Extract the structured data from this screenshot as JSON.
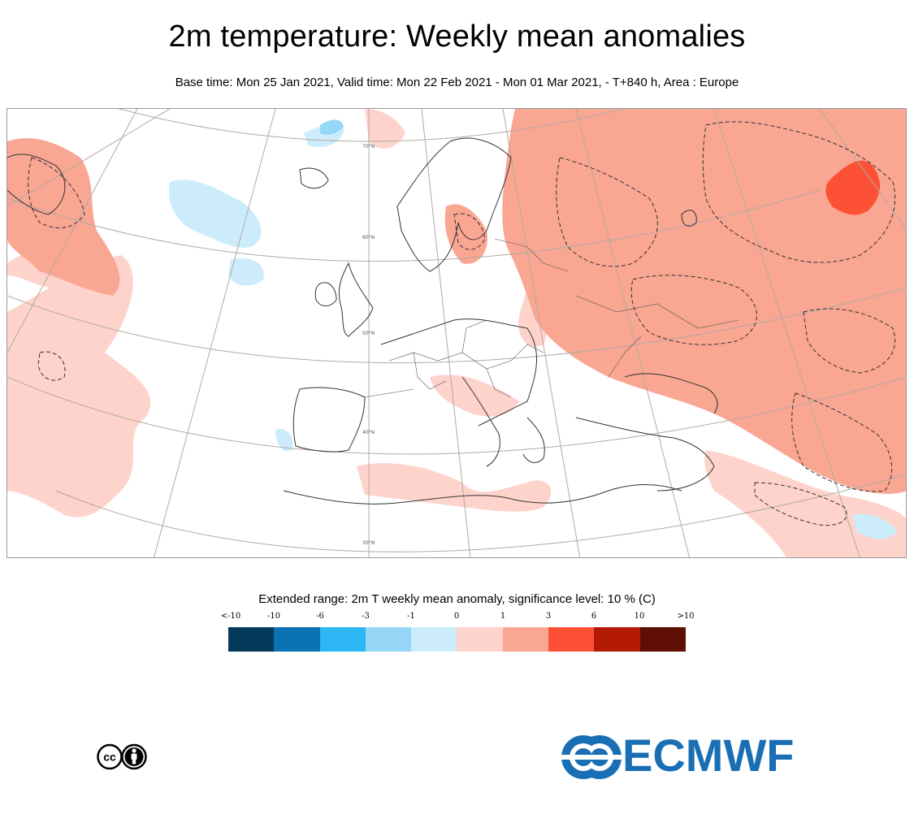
{
  "header": {
    "title": "2m temperature: Weekly mean anomalies",
    "subtitle": "Base time: Mon 25 Jan 2021, Valid time: Mon 22 Feb 2021 - Mon 01 Mar 2021, - T+840 h, Area : Europe"
  },
  "map": {
    "area": "Europe",
    "lat_labels": [
      "70°N",
      "60°N",
      "50°N",
      "40°N",
      "30°N"
    ]
  },
  "legend": {
    "title": "Extended range: 2m T weekly mean anomaly, significance level: 10 % (C)",
    "ticks": [
      "<-10",
      "-10",
      "-6",
      "-3",
      "-1",
      "0",
      "1",
      "3",
      "6",
      "10",
      ">10"
    ],
    "colors": [
      "#033a5a",
      "#0b73b3",
      "#2db7f5",
      "#96d6f7",
      "#cdecfb",
      "#fdd3cc",
      "#f9a693",
      "#fd5136",
      "#b31a06",
      "#5f0e04"
    ]
  },
  "footer": {
    "license_icon": "cc-by-icon",
    "cc_text": "cc",
    "logo_text": "ECMWF"
  }
}
